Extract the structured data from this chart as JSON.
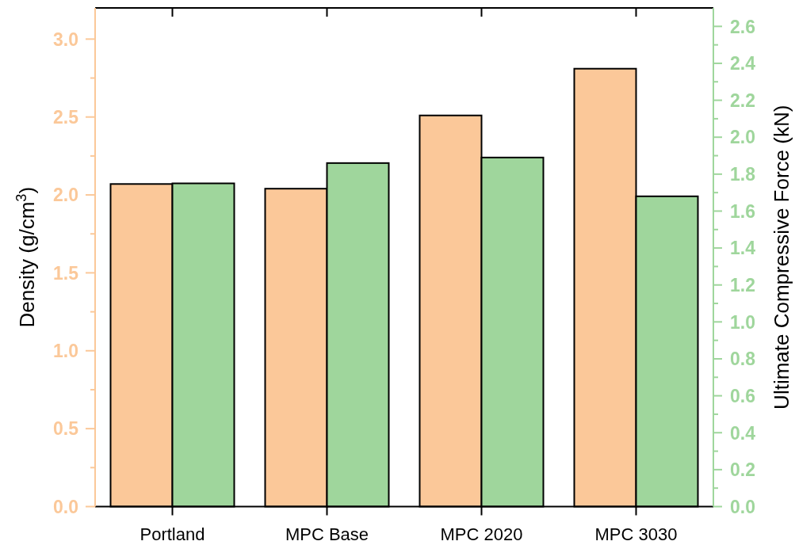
{
  "chart_data": {
    "type": "bar",
    "categories": [
      "Portland",
      "MPC Base",
      "MPC 2020",
      "MPC 3030"
    ],
    "series": [
      {
        "color": "#fbc899",
        "values": [
          2.07,
          2.04,
          2.51,
          2.81
        ]
      },
      {
        "color": "#9fd69c",
        "values": [
          1.75,
          1.86,
          1.89,
          1.68
        ],
        "axis": "y2"
      }
    ],
    "ylabel": "Density (g/cm$^{3}$)",
    "y2label": "Ultimate Compressive Force (kN)",
    "ylim": [
      0,
      3.2
    ],
    "yticks": [
      {
        "value": 0,
        "label": "0.0"
      },
      {
        "value": 0.25,
        "label": null
      },
      {
        "value": 0.5,
        "label": "0.5"
      },
      {
        "value": 0.75,
        "label": null
      },
      {
        "value": 1,
        "label": "1.0"
      },
      {
        "value": 1.25,
        "label": null
      },
      {
        "value": 1.5,
        "label": "1.5"
      },
      {
        "value": 1.75,
        "label": null
      },
      {
        "value": 2,
        "label": "2.0"
      },
      {
        "value": 2.25,
        "label": null
      },
      {
        "value": 2.5,
        "label": "2.5"
      },
      {
        "value": 2.75,
        "label": null
      },
      {
        "value": 3,
        "label": "3.0"
      }
    ],
    "y2lim": [
      0,
      2.7
    ],
    "y2ticks": [
      {
        "value": 0,
        "label": "0.0"
      },
      {
        "value": 0.1,
        "label": null
      },
      {
        "value": 0.2,
        "label": "0.2"
      },
      {
        "value": 0.3,
        "label": null
      },
      {
        "value": 0.4,
        "label": "0.4"
      },
      {
        "value": 0.5,
        "label": null
      },
      {
        "value": 0.6,
        "label": "0.6"
      },
      {
        "value": 0.7,
        "label": null
      },
      {
        "value": 0.8,
        "label": "0.8"
      },
      {
        "value": 0.9,
        "label": null
      },
      {
        "value": 1,
        "label": "1.0"
      },
      {
        "value": 1.1,
        "label": null
      },
      {
        "value": 1.2,
        "label": "1.2"
      },
      {
        "value": 1.3,
        "label": null
      },
      {
        "value": 1.4,
        "label": "1.4"
      },
      {
        "value": 1.5,
        "label": null
      },
      {
        "value": 1.6,
        "label": "1.6"
      },
      {
        "value": 1.7,
        "label": null
      },
      {
        "value": 1.8,
        "label": "1.8"
      },
      {
        "value": 1.9,
        "label": null
      },
      {
        "value": 2,
        "label": "2.0"
      },
      {
        "value": 2.1,
        "label": null
      },
      {
        "value": 2.2,
        "label": "2.2"
      },
      {
        "value": 2.3,
        "label": null
      },
      {
        "value": 2.4,
        "label": "2.4"
      },
      {
        "value": 2.5,
        "label": null
      },
      {
        "value": 2.6,
        "label": "2.6"
      }
    ]
  }
}
